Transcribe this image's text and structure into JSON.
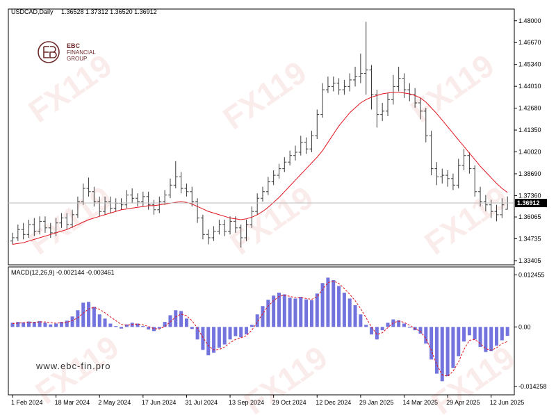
{
  "chart_data": [
    {
      "type": "ohlc",
      "title": "USDCAD,Daily",
      "subtitle": "1.36528 1.37312 1.36520 1.36912",
      "color": "#3a3a3a",
      "categories": [
        "1 Feb 2024",
        null,
        null,
        null,
        null,
        null,
        null,
        null,
        "18 Mar 2024",
        null,
        null,
        null,
        null,
        null,
        null,
        null,
        "2 May 2024",
        null,
        null,
        null,
        null,
        null,
        null,
        null,
        "17 Jun 2024",
        null,
        null,
        null,
        null,
        null,
        null,
        null,
        "31 Jul 2024",
        null,
        null,
        null,
        null,
        null,
        null,
        null,
        "13 Sep 2024",
        null,
        null,
        null,
        null,
        null,
        null,
        null,
        "29 Oct 2024",
        null,
        null,
        null,
        null,
        null,
        null,
        null,
        "12 Dec 2024",
        null,
        null,
        null,
        null,
        null,
        null,
        null,
        "29 Jan 2025",
        null,
        null,
        null,
        null,
        null,
        null,
        null,
        "14 Mar 2025",
        null,
        null,
        null,
        null,
        null,
        null,
        null,
        "29 Apr 2025",
        null,
        null,
        null,
        null,
        null,
        null,
        null,
        "12 Jun 2025",
        null,
        null,
        null
      ],
      "open": [
        1.346,
        1.348,
        1.353,
        1.35,
        1.356,
        1.352,
        1.358,
        1.354,
        1.351,
        1.357,
        1.36,
        1.356,
        1.362,
        1.37,
        1.378,
        1.376,
        1.37,
        1.364,
        1.37,
        1.366,
        1.369,
        1.368,
        1.374,
        1.372,
        1.37,
        1.373,
        1.368,
        1.365,
        1.37,
        1.374,
        1.38,
        1.385,
        1.378,
        1.376,
        1.37,
        1.36,
        1.35,
        1.348,
        1.352,
        1.356,
        1.352,
        1.358,
        1.354,
        1.348,
        1.356,
        1.364,
        1.372,
        1.376,
        1.382,
        1.386,
        1.39,
        1.394,
        1.398,
        1.4,
        1.406,
        1.402,
        1.41,
        1.423,
        1.438,
        1.44,
        1.442,
        1.438,
        1.44,
        1.444,
        1.446,
        1.448,
        1.45,
        1.435,
        1.423,
        1.425,
        1.432,
        1.44,
        1.445,
        1.438,
        1.435,
        1.43,
        1.425,
        1.41,
        1.39,
        1.385,
        1.386,
        1.384,
        1.38,
        1.392,
        1.398,
        1.39,
        1.376,
        1.37,
        1.368,
        1.364,
        1.362,
        1.36528
      ],
      "high": [
        1.351,
        1.356,
        1.357,
        1.359,
        1.36,
        1.361,
        1.361,
        1.357,
        1.36,
        1.363,
        1.363,
        1.365,
        1.373,
        1.381,
        1.3846,
        1.379,
        1.373,
        1.373,
        1.373,
        1.372,
        1.372,
        1.377,
        1.378,
        1.375,
        1.376,
        1.376,
        1.371,
        1.373,
        1.377,
        1.384,
        1.3946,
        1.388,
        1.381,
        1.379,
        1.372,
        1.362,
        1.353,
        1.355,
        1.359,
        1.359,
        1.361,
        1.361,
        1.356,
        1.359,
        1.367,
        1.375,
        1.379,
        1.385,
        1.389,
        1.393,
        1.397,
        1.401,
        1.404,
        1.41,
        1.409,
        1.413,
        1.426,
        1.442,
        1.446,
        1.446,
        1.445,
        1.444,
        1.448,
        1.452,
        1.46,
        1.4793,
        1.453,
        1.438,
        1.43,
        1.436,
        1.447,
        1.452,
        1.448,
        1.442,
        1.439,
        1.433,
        1.427,
        1.413,
        1.394,
        1.39,
        1.389,
        1.387,
        1.396,
        1.402,
        1.4,
        1.392,
        1.379,
        1.374,
        1.371,
        1.368,
        1.372,
        1.37312
      ],
      "low": [
        1.344,
        1.346,
        1.347,
        1.348,
        1.349,
        1.35,
        1.351,
        1.348,
        1.349,
        1.354,
        1.353,
        1.354,
        1.36,
        1.368,
        1.373,
        1.367,
        1.361,
        1.362,
        1.363,
        1.364,
        1.365,
        1.366,
        1.369,
        1.367,
        1.367,
        1.365,
        1.362,
        1.363,
        1.368,
        1.372,
        1.378,
        1.375,
        1.373,
        1.367,
        1.357,
        1.347,
        1.344,
        1.346,
        1.35,
        1.349,
        1.35,
        1.351,
        1.342,
        1.346,
        1.354,
        1.362,
        1.37,
        1.374,
        1.38,
        1.384,
        1.388,
        1.392,
        1.395,
        1.398,
        1.399,
        1.4,
        1.408,
        1.421,
        1.436,
        1.437,
        1.435,
        1.435,
        1.437,
        1.44,
        1.442,
        1.435,
        1.426,
        1.415,
        1.419,
        1.422,
        1.429,
        1.437,
        1.433,
        1.431,
        1.427,
        1.42,
        1.406,
        1.386,
        1.38,
        1.381,
        1.379,
        1.377,
        1.378,
        1.389,
        1.387,
        1.373,
        1.367,
        1.364,
        1.36,
        1.358,
        1.36,
        1.3652
      ],
      "close": [
        1.348,
        1.353,
        1.35,
        1.356,
        1.352,
        1.358,
        1.354,
        1.351,
        1.357,
        1.36,
        1.356,
        1.362,
        1.37,
        1.378,
        1.376,
        1.37,
        1.364,
        1.37,
        1.366,
        1.369,
        1.368,
        1.374,
        1.372,
        1.37,
        1.373,
        1.368,
        1.365,
        1.37,
        1.374,
        1.38,
        1.385,
        1.378,
        1.376,
        1.37,
        1.36,
        1.35,
        1.348,
        1.352,
        1.356,
        1.352,
        1.358,
        1.354,
        1.348,
        1.356,
        1.364,
        1.372,
        1.376,
        1.382,
        1.386,
        1.39,
        1.394,
        1.398,
        1.4,
        1.406,
        1.402,
        1.41,
        1.423,
        1.438,
        1.44,
        1.442,
        1.438,
        1.44,
        1.444,
        1.446,
        1.448,
        1.45,
        1.435,
        1.423,
        1.425,
        1.432,
        1.44,
        1.445,
        1.438,
        1.435,
        1.43,
        1.425,
        1.41,
        1.39,
        1.385,
        1.386,
        1.384,
        1.38,
        1.392,
        1.398,
        1.39,
        1.376,
        1.37,
        1.368,
        1.364,
        1.362,
        1.368,
        1.36912
      ],
      "ma": {
        "color": "#e0141e",
        "values": [
          1.344,
          1.3445,
          1.345,
          1.346,
          1.347,
          1.348,
          1.349,
          1.35,
          1.351,
          1.352,
          1.353,
          1.3545,
          1.356,
          1.3575,
          1.359,
          1.36,
          1.361,
          1.362,
          1.363,
          1.364,
          1.365,
          1.3655,
          1.366,
          1.3665,
          1.367,
          1.3675,
          1.3675,
          1.368,
          1.3685,
          1.369,
          1.3695,
          1.37,
          1.3695,
          1.3685,
          1.367,
          1.3655,
          1.364,
          1.363,
          1.362,
          1.361,
          1.36,
          1.3595,
          1.359,
          1.3595,
          1.3605,
          1.362,
          1.364,
          1.3665,
          1.3695,
          1.3725,
          1.376,
          1.3795,
          1.383,
          1.3865,
          1.39,
          1.3935,
          1.397,
          1.401,
          1.406,
          1.411,
          1.416,
          1.42,
          1.424,
          1.427,
          1.43,
          1.432,
          1.4335,
          1.4345,
          1.4355,
          1.436,
          1.4365,
          1.4365,
          1.436,
          1.4355,
          1.4345,
          1.433,
          1.4305,
          1.427,
          1.4235,
          1.4195,
          1.4155,
          1.4115,
          1.4075,
          1.4035,
          1.3995,
          1.3955,
          1.3915,
          1.388,
          1.3845,
          1.381,
          1.378,
          1.3755
        ]
      },
      "ylim": [
        1.3332,
        1.4854
      ],
      "yticks": [
        {
          "value": 1.48,
          "label": "1.48000"
        },
        {
          "value": 1.4667,
          "label": "1.46670"
        },
        {
          "value": 1.4534,
          "label": "1.45340"
        },
        {
          "value": 1.4401,
          "label": "1.44010"
        },
        {
          "value": 1.4268,
          "label": "1.42680"
        },
        {
          "value": 1.4135,
          "label": "1.41350"
        },
        {
          "value": 1.4002,
          "label": "1.40020"
        },
        {
          "value": 1.3869,
          "label": "1.38690"
        },
        {
          "value": 1.3736,
          "label": "1.37360"
        },
        1.36065,
        1.34735,
        1.33405
      ]
    },
    {
      "type": "macd",
      "title": "MACD(12,26,9) -0.002144 -0.003461",
      "histogram": {
        "color": "#5a5ad8",
        "values": [
          0.001,
          0.0012,
          0.0011,
          0.0013,
          0.0012,
          0.0014,
          0.001,
          0.0006,
          0.0008,
          0.0012,
          0.0015,
          0.0025,
          0.004,
          0.0058,
          0.006,
          0.0048,
          0.003,
          0.002,
          0.0008,
          0.0002,
          -0.0004,
          0.0006,
          0.001,
          0.0008,
          0.0002,
          -0.0006,
          -0.001,
          -0.0004,
          0.0012,
          0.0028,
          0.004,
          0.0038,
          0.002,
          -0.0005,
          -0.003,
          -0.0055,
          -0.0068,
          -0.0062,
          -0.005,
          -0.0042,
          -0.003,
          -0.0022,
          -0.0025,
          -0.0018,
          0.0005,
          0.003,
          0.005,
          0.0065,
          0.0075,
          0.0082,
          0.0078,
          0.007,
          0.0068,
          0.0072,
          0.0066,
          0.0064,
          0.008,
          0.0105,
          0.0118,
          0.0112,
          0.0098,
          0.0082,
          0.0068,
          0.0052,
          0.003,
          0.0005,
          -0.0018,
          -0.003,
          -0.0008,
          0.001,
          0.0018,
          0.0016,
          0.0008,
          -0.0002,
          -0.0008,
          -0.0016,
          -0.004,
          -0.0078,
          -0.0112,
          -0.013,
          -0.0118,
          -0.0098,
          -0.007,
          -0.0035,
          -0.002,
          -0.003,
          -0.0048,
          -0.006,
          -0.0058,
          -0.0045,
          -0.0032,
          -0.002144
        ]
      },
      "signal": {
        "color": "#e0141e",
        "values": [
          0.0008,
          0.0009,
          0.001,
          0.0011,
          0.0011,
          0.0012,
          0.0012,
          0.001,
          0.0009,
          0.001,
          0.0011,
          0.0015,
          0.0022,
          0.0033,
          0.0043,
          0.0047,
          0.0042,
          0.0034,
          0.0024,
          0.0015,
          0.0006,
          0.0004,
          0.0006,
          0.0007,
          0.0005,
          0.0001,
          -0.0004,
          -0.0005,
          0.0001,
          0.0012,
          0.0024,
          0.0031,
          0.0027,
          0.0015,
          -0.0003,
          -0.0025,
          -0.0045,
          -0.0055,
          -0.0054,
          -0.0048,
          -0.0038,
          -0.003,
          -0.0026,
          -0.0021,
          -0.0008,
          0.0012,
          0.0032,
          0.005,
          0.0063,
          0.0073,
          0.0076,
          0.0073,
          0.007,
          0.007,
          0.0068,
          0.0066,
          0.0072,
          0.009,
          0.0106,
          0.011,
          0.0104,
          0.0092,
          0.0078,
          0.0063,
          0.0044,
          0.0022,
          0.0,
          -0.0018,
          -0.0014,
          -0.0002,
          0.001,
          0.0014,
          0.0011,
          0.0004,
          -0.0004,
          -0.0011,
          -0.0028,
          -0.0056,
          -0.009,
          -0.0115,
          -0.0118,
          -0.0106,
          -0.0084,
          -0.0054,
          -0.0032,
          -0.003,
          -0.004,
          -0.0052,
          -0.0056,
          -0.005,
          -0.004,
          -0.003461
        ]
      },
      "ylim": [
        -0.0156,
        0.0137
      ],
      "yticks": [
        0.012455,
        {
          "value": 0,
          "label": "0.00"
        },
        -0.014258
      ]
    }
  ],
  "watermark": "FX119",
  "logo": {
    "name": "EBC",
    "lines": [
      "FINANCIAL",
      "GROUP"
    ]
  },
  "website": "www.ebc-fin.pro"
}
